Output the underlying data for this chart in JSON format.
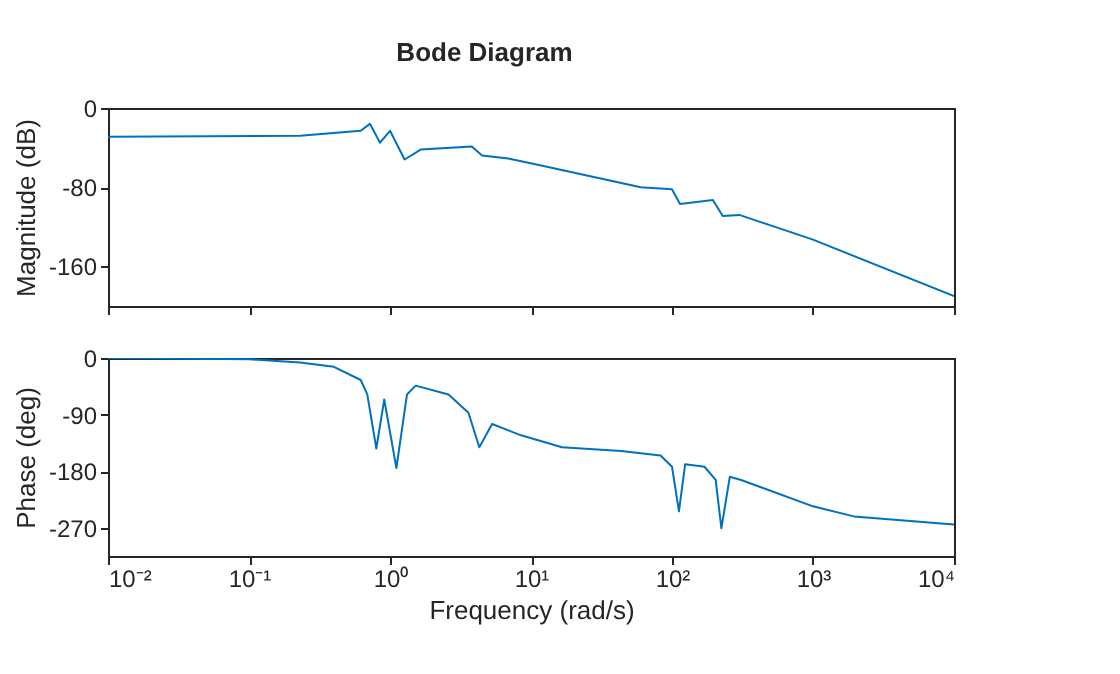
{
  "chart_data": [
    {
      "type": "line",
      "title": "Bode Diagram",
      "ylabel": "Magnitude (dB)",
      "log": "x",
      "tick_labels": "y",
      "grid": false,
      "xlim": [
        0.01,
        10000
      ],
      "xticks": [
        {
          "value": 0.01,
          "label": null
        },
        {
          "value": 0.1,
          "label": null
        },
        {
          "value": 1,
          "label": null
        },
        {
          "value": 10,
          "label": null
        },
        {
          "value": 100,
          "label": null
        },
        {
          "value": 1000,
          "label": null
        },
        {
          "value": 10000,
          "label": null
        }
      ],
      "ylim": [
        -200,
        0
      ],
      "yticks": [
        -160,
        -80,
        0
      ],
      "series": [
        {
          "color": "#0072bd",
          "x": [
            0.01,
            0.23,
            0.62,
            0.72,
            0.85,
            1.0,
            1.27,
            1.65,
            3.8,
            4.5,
            6.9,
            11.8,
            60,
            100,
            114,
            195,
            229,
            300,
            1000,
            10000
          ],
          "values": [
            -29,
            -28,
            -23,
            -16,
            -35,
            -23,
            -52,
            -42,
            -39,
            -48,
            -51,
            -58,
            -80,
            -82,
            -97,
            -93,
            -109,
            -108,
            -133,
            -190
          ]
        }
      ]
    },
    {
      "type": "line",
      "xlabel": "Frequency (rad/s)",
      "ylabel": "Phase (deg)",
      "log": "x",
      "grid": false,
      "xlim": [
        0.01,
        10000
      ],
      "xticks": [
        {
          "value": 0.01,
          "label": "10⁻²"
        },
        {
          "value": 0.1,
          "label": "10⁻¹"
        },
        {
          "value": 1,
          "label": "10⁰"
        },
        {
          "value": 10,
          "label": "10¹"
        },
        {
          "value": 100,
          "label": "10²"
        },
        {
          "value": 1000,
          "label": "10³"
        },
        {
          "value": 10000,
          "label": "10⁴"
        }
      ],
      "ylim": [
        -315,
        0
      ],
      "yticks": [
        -270,
        -180,
        -90,
        0
      ],
      "series": [
        {
          "color": "#0072bd",
          "x": [
            0.01,
            0.1,
            0.23,
            0.4,
            0.62,
            0.69,
            0.8,
            0.91,
            1.11,
            1.32,
            1.52,
            2.6,
            3.6,
            4.3,
            5.3,
            8.5,
            16.6,
            43.6,
            83,
            100,
            112,
            124,
            170,
            204,
            224,
            257,
            309,
            1000,
            1950,
            10000
          ],
          "values": [
            0,
            -2,
            -7,
            -14,
            -35,
            -58,
            -144,
            -66,
            -175,
            -58,
            -44,
            -58,
            -87,
            -142,
            -105,
            -123,
            -142,
            -148,
            -155,
            -173,
            -244,
            -169,
            -173,
            -194,
            -271,
            -189,
            -194,
            -236,
            -252,
            -265
          ]
        }
      ]
    }
  ]
}
